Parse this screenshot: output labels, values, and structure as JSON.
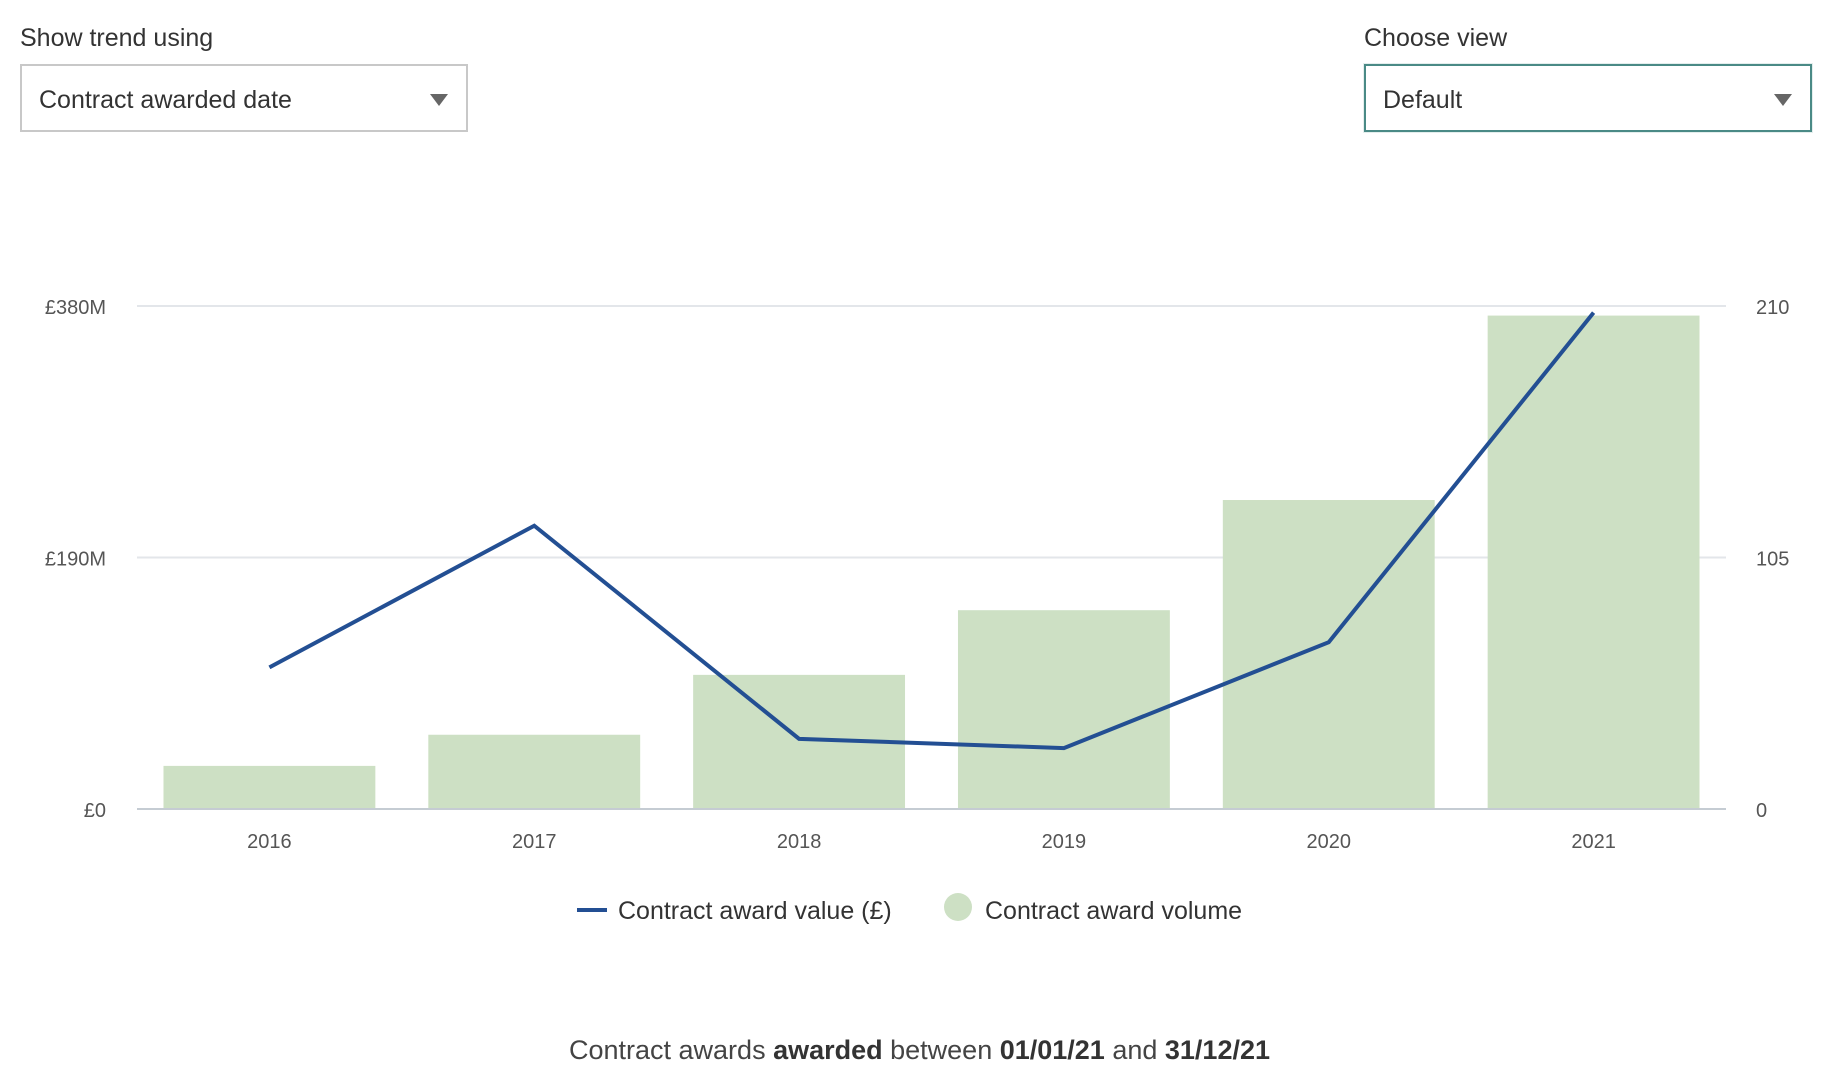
{
  "controls": {
    "trend": {
      "label": "Show trend using",
      "selected": "Contract awarded date"
    },
    "view": {
      "label": "Choose view",
      "selected": "Default"
    }
  },
  "colors": {
    "line": "#234f93",
    "bar": "#cde0c4",
    "grid": "#e3e6ea",
    "axis": "#c5ccd3",
    "tick_text": "#555555",
    "focus_border": "#4a8a86"
  },
  "chart_data": {
    "type": "bar",
    "categories": [
      "2016",
      "2017",
      "2018",
      "2019",
      "2020",
      "2021"
    ],
    "series": [
      {
        "name": "Contract award value (£)",
        "type": "line",
        "axis": "left",
        "values": [
          107,
          214,
          53,
          46,
          126,
          375
        ]
      },
      {
        "name": "Contract award volume",
        "type": "bar",
        "axis": "right",
        "values": [
          18,
          31,
          56,
          83,
          129,
          206
        ]
      }
    ],
    "left_axis": {
      "ylim": [
        0,
        380
      ],
      "ticks": [
        0,
        190,
        380
      ],
      "tick_labels": [
        "£0",
        "£190M",
        "£380M"
      ]
    },
    "right_axis": {
      "ylim": [
        0,
        210
      ],
      "ticks": [
        0,
        105,
        210
      ],
      "tick_labels": [
        "0",
        "105",
        "210"
      ]
    },
    "grid": true,
    "legend_position": "bottom-center"
  },
  "footer": {
    "prefix": "Contract awards ",
    "status": "awarded",
    "between": " between ",
    "start_date": "01/01/21",
    "and": " and ",
    "end_date": "31/12/21"
  }
}
